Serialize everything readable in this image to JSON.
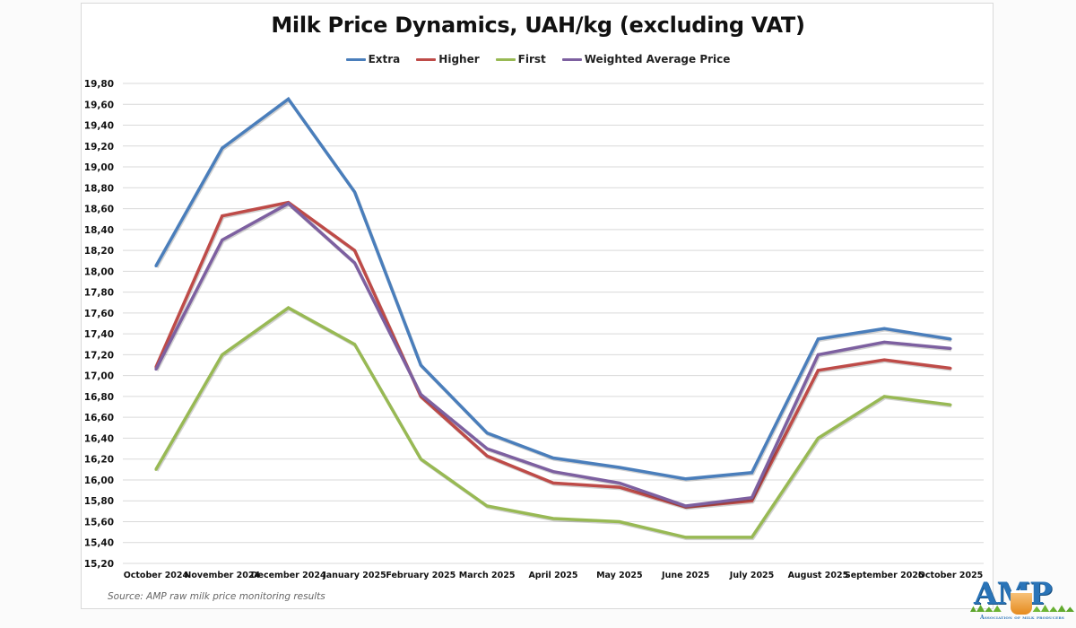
{
  "chart_data": {
    "type": "line",
    "title": "Milk Price Dynamics, UAH/kg (excluding VAT)",
    "xlabel": "",
    "ylabel": "",
    "ylim": [
      15.2,
      19.8
    ],
    "ytick_step": 0.2,
    "ytick_labels": [
      "19,80",
      "19,60",
      "19,40",
      "19,20",
      "19,00",
      "18,80",
      "18,60",
      "18,40",
      "18,20",
      "18,00",
      "17,80",
      "17,60",
      "17,40",
      "17,20",
      "17,00",
      "16,80",
      "16,60",
      "16,40",
      "16,20",
      "16,00",
      "15,80",
      "15,60",
      "15,40",
      "15,20"
    ],
    "grid": true,
    "legend_position": "top-center",
    "categories": [
      "October 2024",
      "November 2024",
      "December 2024",
      "January 2025",
      "February 2025",
      "March 2025",
      "April 2025",
      "May 2025",
      "June 2025",
      "July 2025",
      "August 2025",
      "September 2025",
      "October 2025"
    ],
    "series": [
      {
        "name": "Extra",
        "color": "#4a7ebb",
        "values": [
          18.05,
          19.18,
          19.65,
          18.76,
          17.1,
          16.45,
          16.21,
          16.12,
          16.01,
          16.07,
          17.35,
          17.45,
          17.35
        ]
      },
      {
        "name": "Higher",
        "color": "#be4b48",
        "values": [
          17.08,
          18.53,
          18.66,
          18.2,
          16.8,
          16.23,
          15.97,
          15.93,
          15.74,
          15.8,
          17.05,
          17.15,
          17.07
        ]
      },
      {
        "name": "First",
        "color": "#98b954",
        "values": [
          16.1,
          17.2,
          17.65,
          17.3,
          16.2,
          15.75,
          15.63,
          15.6,
          15.45,
          15.45,
          16.4,
          16.8,
          16.72
        ]
      },
      {
        "name": "Weighted Average Price",
        "color": "#7d60a0",
        "values": [
          17.06,
          18.3,
          18.65,
          18.08,
          16.82,
          16.3,
          16.08,
          15.97,
          15.75,
          15.83,
          17.2,
          17.32,
          17.26
        ]
      }
    ],
    "source_note": "Source: AMP raw milk price monitoring results"
  },
  "logo": {
    "letters": "AMP",
    "caption": "Association of milk producers"
  }
}
